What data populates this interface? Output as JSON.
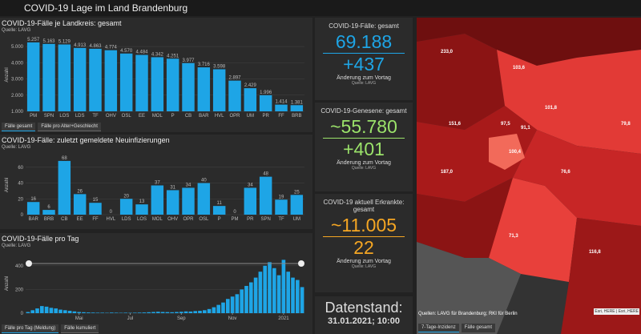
{
  "header": {
    "title": "COVID-19 Lage im Land Brandenburg"
  },
  "panels": [
    {
      "title": "COVID-19-Fälle je Landkreis: gesamt",
      "source": "Quelle: LAVG",
      "y_label": "Anzahl",
      "chart_data": {
        "type": "bar",
        "color": "#1ea5e6",
        "categories": [
          "PM",
          "SPN",
          "LOS",
          "LDS",
          "TF",
          "OHV",
          "OSL",
          "EE",
          "MOL",
          "P",
          "CB",
          "BAR",
          "HVL",
          "OPR",
          "UM",
          "PR",
          "FF",
          "BRB"
        ],
        "values": [
          5257,
          5163,
          5129,
          4913,
          4863,
          4774,
          4570,
          4484,
          4342,
          4251,
          3977,
          3716,
          3598,
          2897,
          2429,
          1996,
          1414,
          1381
        ],
        "value_labels": [
          "5.257",
          "5.163",
          "5.129",
          "4.913",
          "4.863",
          "4.774",
          "4.570",
          "4.484",
          "4.342",
          "4.251",
          "3.977",
          "3.716",
          "3.598",
          "2.897",
          "2.429",
          "1.996",
          "1.414",
          "1.381"
        ],
        "ylim": [
          1000,
          5500
        ],
        "yticks": [
          {
            "value": 1000,
            "label": "1.000"
          },
          {
            "value": 2000,
            "label": "2.000"
          },
          {
            "value": 3000,
            "label": "3.000"
          },
          {
            "value": 4000,
            "label": "4.000"
          },
          {
            "value": 5000,
            "label": "5.000"
          }
        ]
      },
      "tabs": [
        "Fälle gesamt",
        "Fälle pro Alter+Geschlecht"
      ]
    },
    {
      "title": "COVID-19-Fälle: zuletzt gemeldete Neuinfizierungen",
      "source": "Quelle: LAVG",
      "y_label": "Anzahl",
      "chart_data": {
        "type": "bar",
        "color": "#1ea5e6",
        "categories": [
          "BAR",
          "BRB",
          "CB",
          "EE",
          "FF",
          "HVL",
          "LDS",
          "LOS",
          "MOL",
          "OHV",
          "OPR",
          "OSL",
          "P",
          "PM",
          "PR",
          "SPN",
          "TF",
          "UM"
        ],
        "values": [
          16,
          6,
          68,
          26,
          15,
          0,
          20,
          13,
          37,
          31,
          34,
          40,
          11,
          0,
          34,
          48,
          19,
          25
        ],
        "ylim": [
          0,
          75
        ],
        "yticks": [
          0,
          20,
          40,
          60
        ]
      },
      "tabs": []
    },
    {
      "title": "COVID-19-Fälle pro Tag",
      "source": "Quelle: LAVG",
      "y_label": "Anzahl",
      "chart_data": {
        "type": "bar",
        "color": "#1ea5e6",
        "values": [
          10,
          25,
          40,
          60,
          55,
          45,
          40,
          30,
          25,
          20,
          15,
          10,
          8,
          6,
          5,
          4,
          4,
          3,
          5,
          4,
          3,
          4,
          3,
          4,
          5,
          6,
          8,
          10,
          12,
          10,
          9,
          8,
          10,
          12,
          15,
          14,
          18,
          20,
          25,
          35,
          50,
          70,
          90,
          120,
          140,
          160,
          200,
          230,
          260,
          300,
          350,
          400,
          430,
          380,
          320,
          450,
          350,
          300,
          280,
          220
        ],
        "ylim": [
          0,
          500
        ],
        "yticks": [
          0,
          200,
          400
        ],
        "xticks": [
          {
            "value": 11,
            "label": "Mai"
          },
          {
            "value": 22,
            "label": "Jul"
          },
          {
            "value": 33,
            "label": "Sep"
          },
          {
            "value": 44,
            "label": "Nov"
          },
          {
            "value": 55,
            "label": "2021"
          }
        ]
      },
      "tabs": [
        "Fälle pro Tag (Meldung)",
        "Fälle kumuliert"
      ]
    }
  ],
  "cards": [
    {
      "title": "COVID-19-Fälle: gesamt",
      "total": "69.188",
      "change": "+437",
      "change_label": "Änderung zum Vortag",
      "source": "Quelle: LAVG",
      "color": "#1ea5e6"
    },
    {
      "title": "COVID-19-Genesene: gesamt",
      "total": "~55.780",
      "change": "+401",
      "change_label": "Änderung zum Vortag",
      "source": "Quelle: LAVG",
      "color": "#9be36a"
    },
    {
      "title": "COVID-19 aktuell Erkrankte: gesamt",
      "total": "~11.005",
      "change": "22",
      "change_label": "Änderung zum Vortag",
      "source": "Quelle: LAVG",
      "color": "#f5a623"
    }
  ],
  "status": {
    "label": "Datenstand:",
    "date": "31.01.2021; 10:00"
  },
  "map": {
    "labels": [
      "233,0",
      "103,6",
      "151,6",
      "101,8",
      "187,0",
      "97,5",
      "91,1",
      "100,4",
      "76,6",
      "71,3",
      "116,8",
      "79,8"
    ],
    "source": "Quellen: LAVG für Brandenburg; RKI für Berlin",
    "attribution": "Esri, HERE | Esri, HERE",
    "tabs": [
      "7-Tage-Inzidenz",
      "Fälle gesamt"
    ]
  }
}
